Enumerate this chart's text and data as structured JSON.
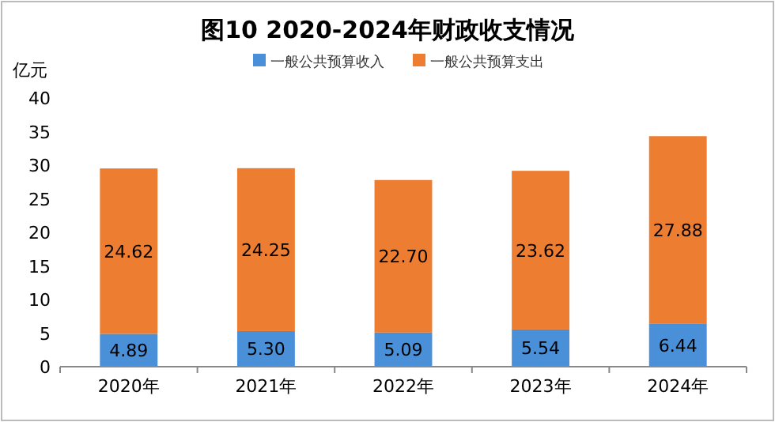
{
  "chart_data": {
    "type": "bar",
    "stacked": true,
    "title": "图10 2020-2024年财政收支情况",
    "ylabel": "亿元",
    "categories": [
      "2020年",
      "2021年",
      "2022年",
      "2023年",
      "2024年"
    ],
    "series": [
      {
        "name": "一般公共预算收入",
        "color": "#4a90d9",
        "values": [
          4.89,
          5.3,
          5.09,
          5.54,
          6.44
        ],
        "value_labels": [
          "4.89",
          "5.30",
          "5.09",
          "5.54",
          "6.44"
        ]
      },
      {
        "name": "一般公共预算支出",
        "color": "#ed7d31",
        "values": [
          24.62,
          24.25,
          22.7,
          23.62,
          27.88
        ],
        "value_labels": [
          "24.62",
          "24.25",
          "22.70",
          "23.62",
          "27.88"
        ]
      }
    ],
    "ylim": [
      0,
      40
    ],
    "yticks": [
      0,
      5,
      10,
      15,
      20,
      25,
      30,
      35,
      40
    ],
    "legend": "top"
  }
}
